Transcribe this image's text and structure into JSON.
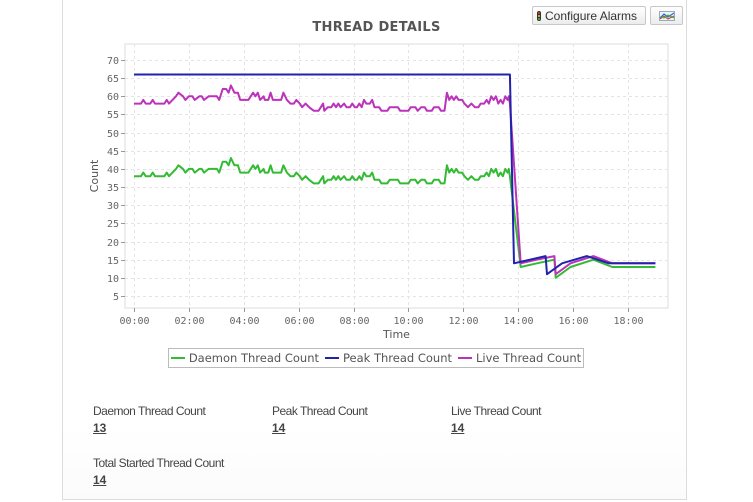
{
  "toolbar": {
    "configure_alarms_label": "Configure Alarms",
    "traffic_light_icon": "traffic-light-icon",
    "chart_icon": "chart-type-icon"
  },
  "chart_data": {
    "type": "line",
    "title": "THREAD DETAILS",
    "xlabel": "Time",
    "ylabel": "Count",
    "ylim": [
      1.6,
      72
    ],
    "yticks": [
      5,
      10,
      15,
      20,
      25,
      30,
      35,
      40,
      45,
      50,
      55,
      60,
      65,
      70
    ],
    "xticks": [
      "00:00",
      "02:00",
      "04:00",
      "06:00",
      "08:00",
      "10:00",
      "12:00",
      "14:00",
      "16:00",
      "18:00"
    ],
    "xlim_hours": [
      -0.33,
      19.5
    ],
    "grid": true,
    "legend_position": "bottom",
    "series": [
      {
        "name": "Daemon Thread Count",
        "color": "#33bb33",
        "points": [
          [
            0,
            38
          ],
          [
            0.3,
            38
          ],
          [
            0.4,
            39
          ],
          [
            0.5,
            38
          ],
          [
            0.7,
            38
          ],
          [
            0.8,
            39
          ],
          [
            0.9,
            38
          ],
          [
            1.3,
            38
          ],
          [
            1.4,
            39
          ],
          [
            1.5,
            38
          ],
          [
            1.8,
            40
          ],
          [
            1.9,
            41
          ],
          [
            2.1,
            40
          ],
          [
            2.2,
            39
          ],
          [
            2.35,
            40
          ],
          [
            2.5,
            40
          ],
          [
            2.6,
            39
          ],
          [
            2.8,
            40
          ],
          [
            2.9,
            40
          ],
          [
            3.0,
            39
          ],
          [
            3.2,
            40
          ],
          [
            3.55,
            40
          ],
          [
            3.65,
            39
          ],
          [
            3.8,
            42
          ],
          [
            3.95,
            42
          ],
          [
            4.05,
            41
          ],
          [
            4.15,
            43
          ],
          [
            4.3,
            41
          ],
          [
            4.45,
            41
          ],
          [
            4.55,
            39
          ],
          [
            4.9,
            39
          ],
          [
            5.0,
            40
          ],
          [
            5.1,
            41
          ],
          [
            5.2,
            40
          ],
          [
            5.3,
            41
          ],
          [
            5.4,
            39
          ],
          [
            5.55,
            40
          ],
          [
            5.6,
            39
          ],
          [
            5.75,
            39
          ],
          [
            5.85,
            41
          ],
          [
            5.95,
            39
          ],
          [
            6.3,
            39
          ],
          [
            6.4,
            41
          ],
          [
            6.55,
            39
          ],
          [
            6.7,
            38
          ],
          [
            6.85,
            38
          ],
          [
            6.95,
            39
          ],
          [
            7.1,
            38
          ],
          [
            7.2,
            37
          ],
          [
            7.35,
            38
          ],
          [
            7.5,
            37
          ],
          [
            7.7,
            36
          ],
          [
            7.9,
            36
          ],
          [
            8.0,
            37
          ],
          [
            8.1,
            38
          ],
          [
            8.15,
            36
          ],
          [
            8.3,
            37
          ],
          [
            8.45,
            37
          ],
          [
            8.55,
            38
          ],
          [
            8.65,
            37
          ],
          [
            8.75,
            38
          ],
          [
            8.85,
            37
          ],
          [
            9.0,
            38
          ],
          [
            9.1,
            37
          ],
          [
            9.25,
            37
          ],
          [
            9.35,
            38
          ],
          [
            9.45,
            37
          ],
          [
            9.55,
            37
          ],
          [
            9.65,
            38
          ],
          [
            9.75,
            37
          ],
          [
            9.85,
            39
          ],
          [
            9.95,
            38
          ],
          [
            10.1,
            38
          ],
          [
            10.2,
            39
          ],
          [
            10.3,
            37
          ],
          [
            10.5,
            37
          ],
          [
            10.6,
            36
          ],
          [
            10.85,
            36
          ],
          [
            10.95,
            37
          ],
          [
            11.3,
            37
          ],
          [
            11.4,
            36
          ],
          [
            11.75,
            36
          ],
          [
            11.85,
            37
          ],
          [
            12.05,
            37
          ],
          [
            12.15,
            36
          ],
          [
            12.3,
            37
          ],
          [
            12.45,
            37
          ],
          [
            12.55,
            36
          ],
          [
            12.75,
            36
          ],
          [
            12.85,
            37
          ],
          [
            13.05,
            37
          ],
          [
            13.15,
            36
          ],
          [
            13.3,
            36
          ],
          [
            13.4,
            41
          ],
          [
            13.5,
            39
          ],
          [
            13.6,
            40
          ],
          [
            13.7,
            39
          ],
          [
            13.8,
            40
          ],
          [
            13.9,
            39
          ],
          [
            14.05,
            39
          ],
          [
            14.15,
            38
          ],
          [
            14.3,
            37
          ],
          [
            14.45,
            38
          ],
          [
            14.6,
            37
          ],
          [
            14.75,
            37
          ],
          [
            14.85,
            38
          ],
          [
            15.0,
            38
          ],
          [
            15.1,
            39
          ],
          [
            15.2,
            38
          ],
          [
            15.3,
            40
          ],
          [
            15.4,
            39
          ],
          [
            15.5,
            40
          ],
          [
            15.6,
            38
          ],
          [
            15.7,
            39
          ],
          [
            15.8,
            38
          ],
          [
            15.9,
            40
          ],
          [
            16.0,
            39
          ],
          [
            16.05,
            40
          ],
          [
            16.1,
            38
          ],
          [
            16.5,
            13
          ],
          [
            17.1,
            14
          ],
          [
            17.75,
            15
          ],
          [
            17.8,
            10
          ],
          [
            18.35,
            13
          ],
          [
            19.2,
            15
          ],
          [
            19.9,
            13
          ],
          [
            21.5,
            13
          ]
        ],
        "display_note": "x in hours from 00:00; right section compressed on chart axis"
      },
      {
        "name": "Peak Thread Count",
        "color": "#2222aa",
        "points": [
          [
            0,
            66
          ],
          [
            13.7,
            66
          ],
          [
            13.85,
            14
          ],
          [
            15.0,
            16
          ],
          [
            15.05,
            11
          ],
          [
            15.6,
            14
          ],
          [
            16.5,
            16
          ],
          [
            17.3,
            14
          ],
          [
            19.0,
            14
          ]
        ]
      },
      {
        "name": "Live Thread Count",
        "color": "#bb33bb",
        "points": [
          [
            0,
            58
          ],
          [
            0.3,
            58
          ],
          [
            0.4,
            59
          ],
          [
            0.5,
            58
          ],
          [
            0.7,
            58
          ],
          [
            0.8,
            59
          ],
          [
            0.9,
            58
          ],
          [
            1.3,
            58
          ],
          [
            1.4,
            59
          ],
          [
            1.5,
            58
          ],
          [
            1.8,
            60
          ],
          [
            1.9,
            61
          ],
          [
            2.1,
            60
          ],
          [
            2.2,
            59
          ],
          [
            2.35,
            60
          ],
          [
            2.5,
            60
          ],
          [
            2.6,
            59
          ],
          [
            2.8,
            60
          ],
          [
            2.9,
            60
          ],
          [
            3.0,
            59
          ],
          [
            3.2,
            60
          ],
          [
            3.55,
            60
          ],
          [
            3.65,
            59
          ],
          [
            3.8,
            62
          ],
          [
            3.95,
            62
          ],
          [
            4.05,
            61
          ],
          [
            4.15,
            63
          ],
          [
            4.3,
            61
          ],
          [
            4.45,
            61
          ],
          [
            4.55,
            59
          ],
          [
            4.9,
            59
          ],
          [
            5.0,
            60
          ],
          [
            5.1,
            61
          ],
          [
            5.2,
            60
          ],
          [
            5.3,
            61
          ],
          [
            5.4,
            59
          ],
          [
            5.55,
            60
          ],
          [
            5.6,
            59
          ],
          [
            5.75,
            59
          ],
          [
            5.85,
            61
          ],
          [
            5.95,
            59
          ],
          [
            6.3,
            59
          ],
          [
            6.4,
            61
          ],
          [
            6.55,
            59
          ],
          [
            6.7,
            58
          ],
          [
            6.85,
            58
          ],
          [
            6.95,
            59
          ],
          [
            7.1,
            58
          ],
          [
            7.2,
            57
          ],
          [
            7.35,
            58
          ],
          [
            7.5,
            57
          ],
          [
            7.7,
            56
          ],
          [
            7.9,
            56
          ],
          [
            8.0,
            57
          ],
          [
            8.1,
            58
          ],
          [
            8.15,
            56
          ],
          [
            8.3,
            57
          ],
          [
            8.45,
            57
          ],
          [
            8.55,
            58
          ],
          [
            8.65,
            57
          ],
          [
            8.75,
            58
          ],
          [
            8.85,
            57
          ],
          [
            9.0,
            58
          ],
          [
            9.1,
            57
          ],
          [
            9.25,
            57
          ],
          [
            9.35,
            58
          ],
          [
            9.45,
            57
          ],
          [
            9.55,
            57
          ],
          [
            9.65,
            58
          ],
          [
            9.75,
            57
          ],
          [
            9.85,
            59
          ],
          [
            9.95,
            58
          ],
          [
            10.1,
            58
          ],
          [
            10.2,
            59
          ],
          [
            10.3,
            57
          ],
          [
            10.5,
            57
          ],
          [
            10.6,
            56
          ],
          [
            10.85,
            56
          ],
          [
            10.95,
            57
          ],
          [
            11.3,
            57
          ],
          [
            11.4,
            56
          ],
          [
            11.75,
            56
          ],
          [
            11.85,
            57
          ],
          [
            12.05,
            57
          ],
          [
            12.15,
            56
          ],
          [
            12.3,
            57
          ],
          [
            12.45,
            57
          ],
          [
            12.55,
            56
          ],
          [
            12.75,
            56
          ],
          [
            12.85,
            57
          ],
          [
            13.05,
            57
          ],
          [
            13.15,
            56
          ],
          [
            13.3,
            56
          ],
          [
            13.4,
            61
          ],
          [
            13.5,
            59
          ],
          [
            13.6,
            60
          ],
          [
            13.7,
            59
          ],
          [
            13.8,
            60
          ],
          [
            13.9,
            59
          ],
          [
            14.05,
            59
          ],
          [
            14.15,
            58
          ],
          [
            14.3,
            57
          ],
          [
            14.45,
            58
          ],
          [
            14.6,
            57
          ],
          [
            14.75,
            57
          ],
          [
            14.85,
            58
          ],
          [
            15.0,
            58
          ],
          [
            15.1,
            59
          ],
          [
            15.2,
            58
          ],
          [
            15.3,
            60
          ],
          [
            15.4,
            59
          ],
          [
            15.5,
            60
          ],
          [
            15.6,
            58
          ],
          [
            15.7,
            59
          ],
          [
            15.8,
            58
          ],
          [
            15.9,
            60
          ],
          [
            16.0,
            59
          ],
          [
            16.05,
            60
          ],
          [
            16.1,
            58
          ],
          [
            16.5,
            14
          ],
          [
            17.1,
            15
          ],
          [
            17.75,
            16
          ],
          [
            17.8,
            11
          ],
          [
            18.35,
            14
          ],
          [
            19.2,
            16
          ],
          [
            19.9,
            14
          ],
          [
            21.5,
            14
          ]
        ],
        "display_note": "x in hours from 00:00; right section compressed on chart axis"
      }
    ]
  },
  "legend": {
    "items": [
      {
        "label": "Daemon Thread Count",
        "color": "#33bb33"
      },
      {
        "label": "Peak Thread Count",
        "color": "#2222aa"
      },
      {
        "label": "Live Thread Count",
        "color": "#bb33bb"
      }
    ]
  },
  "stats": [
    {
      "label": "Daemon Thread Count",
      "value": "13"
    },
    {
      "label": "Peak Thread Count",
      "value": "14"
    },
    {
      "label": "Live Thread Count",
      "value": "14"
    },
    {
      "label": "Total Started Thread Count",
      "value": "14"
    }
  ]
}
